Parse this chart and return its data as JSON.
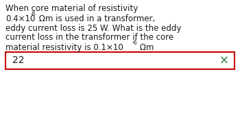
{
  "bg_color": "#ffffff",
  "text_color": "#1a1a1a",
  "line1": "When core material of resistivity",
  "line2_before": "0.4×10",
  "line2_sup": "-6",
  "line2_after": " Ωm is used in a transformer,",
  "line3": "eddy current loss is 25 W. What is the eddy",
  "line4": "current loss in the transformer if the core",
  "line5_before": "material resistivity is 0.1×10",
  "line5_sup": "-6",
  "line5_after": " Ωm",
  "answer": "22",
  "box_border_color": "#cc0000",
  "box_fill_color": "#ffffff",
  "x_color": "#2d7a2d",
  "font_size": 8.5,
  "sup_font_size": 5.5,
  "answer_font_size": 10
}
